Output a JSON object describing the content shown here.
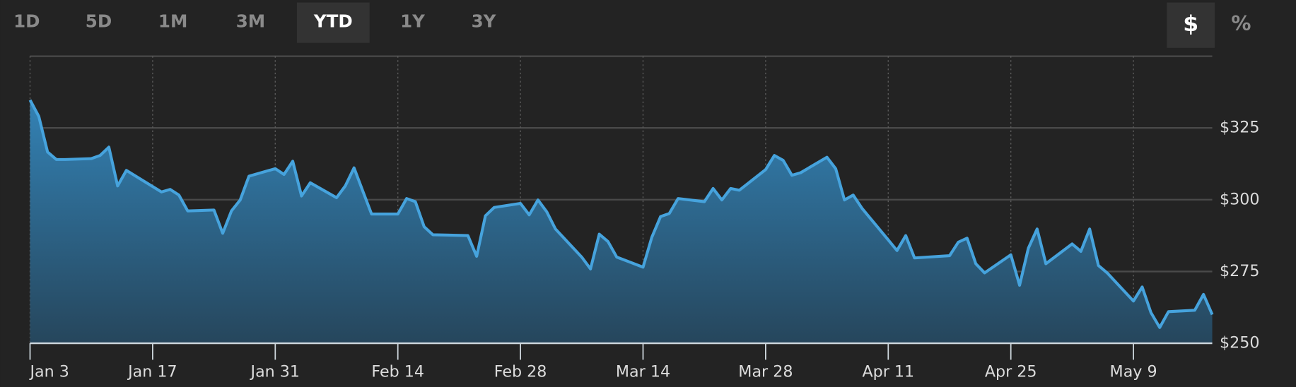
{
  "range_selector": {
    "options": [
      "1D",
      "5D",
      "1M",
      "3M",
      "YTD",
      "1Y",
      "3Y"
    ],
    "selected_index": 4
  },
  "unit_selector": {
    "options": [
      "$",
      "%"
    ],
    "selected_index": 0
  },
  "chart_data": {
    "type": "area",
    "color": "#46a3dd",
    "grid": true,
    "x": [
      "Jan 3",
      "Jan 4",
      "Jan 5",
      "Jan 6",
      "Jan 7",
      "Jan 10",
      "Jan 11",
      "Jan 12",
      "Jan 13",
      "Jan 14",
      "Jan 18",
      "Jan 19",
      "Jan 20",
      "Jan 21",
      "Jan 24",
      "Jan 25",
      "Jan 26",
      "Jan 27",
      "Jan 28",
      "Jan 31",
      "Feb 1",
      "Feb 2",
      "Feb 3",
      "Feb 4",
      "Feb 7",
      "Feb 8",
      "Feb 9",
      "Feb 10",
      "Feb 11",
      "Feb 14",
      "Feb 15",
      "Feb 16",
      "Feb 17",
      "Feb 18",
      "Feb 22",
      "Feb 23",
      "Feb 24",
      "Feb 25",
      "Feb 28",
      "Mar 1",
      "Mar 2",
      "Mar 3",
      "Mar 4",
      "Mar 7",
      "Mar 8",
      "Mar 9",
      "Mar 10",
      "Mar 11",
      "Mar 14",
      "Mar 15",
      "Mar 16",
      "Mar 17",
      "Mar 18",
      "Mar 21",
      "Mar 22",
      "Mar 23",
      "Mar 24",
      "Mar 25",
      "Mar 28",
      "Mar 29",
      "Mar 30",
      "Mar 31",
      "Apr 1",
      "Apr 4",
      "Apr 5",
      "Apr 6",
      "Apr 7",
      "Apr 8",
      "Apr 11",
      "Apr 12",
      "Apr 13",
      "Apr 14",
      "Apr 18",
      "Apr 19",
      "Apr 20",
      "Apr 21",
      "Apr 22",
      "Apr 25",
      "Apr 26",
      "Apr 27",
      "Apr 28",
      "Apr 29",
      "May 2",
      "May 3",
      "May 4",
      "May 5",
      "May 6",
      "May 9",
      "May 10",
      "May 11",
      "May 12",
      "May 13",
      "May 16",
      "May 17",
      "May 18"
    ],
    "values": [
      334.7,
      329,
      316.6,
      314,
      314,
      314.3,
      315.4,
      318.3,
      304.8,
      310.2,
      302.7,
      303.6,
      301.6,
      296.1,
      296.4,
      288.3,
      296.1,
      299.9,
      308.2,
      310.8,
      308.8,
      313.4,
      301.3,
      305.9,
      300.7,
      304.8,
      311.1,
      303,
      295,
      295,
      300.4,
      299.3,
      290.6,
      287.8,
      287.5,
      280.3,
      294.4,
      297.3,
      298.7,
      294.7,
      299.9,
      295.8,
      289.8,
      280,
      275.9,
      288,
      285.4,
      280,
      276.5,
      286.9,
      294.1,
      295.2,
      300.4,
      299.3,
      303.9,
      299.9,
      303.9,
      303.3,
      310.5,
      315.4,
      313.7,
      308.5,
      309.4,
      314.8,
      310.8,
      299.9,
      301.6,
      297,
      286,
      282.3,
      287.5,
      279.7,
      280.5,
      285.2,
      286.6,
      277.7,
      274.5,
      280.8,
      270.2,
      283.1,
      289.8,
      277.7,
      284.6,
      282,
      289.8,
      277.1,
      274.5,
      264.7,
      269.6,
      260.7,
      255.5,
      261,
      261.5,
      267,
      260
    ],
    "xlim": [
      "Jan 3",
      "May 18"
    ],
    "xticks": [
      "Jan 3",
      "Jan 17",
      "Jan 31",
      "Feb 14",
      "Feb 28",
      "Mar 14",
      "Mar 28",
      "Apr 11",
      "Apr 25",
      "May 9"
    ],
    "ylim": [
      250,
      350
    ],
    "yticks": [
      {
        "value": 250,
        "label": "$250"
      },
      {
        "value": 275,
        "label": "$275"
      },
      {
        "value": 300,
        "label": "$300"
      },
      {
        "value": 325,
        "label": "$325"
      }
    ]
  }
}
